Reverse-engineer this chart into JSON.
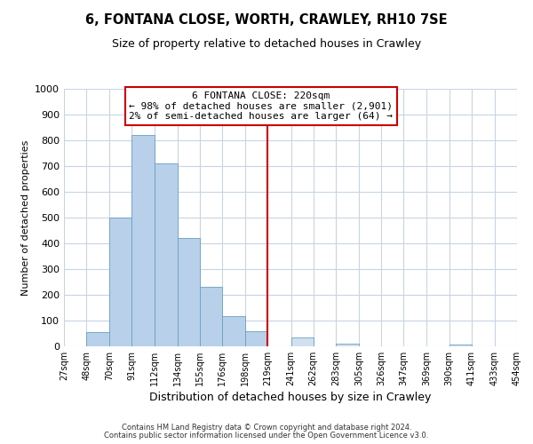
{
  "title": "6, FONTANA CLOSE, WORTH, CRAWLEY, RH10 7SE",
  "subtitle": "Size of property relative to detached houses in Crawley",
  "xlabel": "Distribution of detached houses by size in Crawley",
  "ylabel": "Number of detached properties",
  "bar_edges": [
    27,
    48,
    70,
    91,
    112,
    134,
    155,
    176,
    198,
    219,
    241,
    262,
    283,
    305,
    326,
    347,
    369,
    390,
    411,
    433,
    454
  ],
  "bar_heights": [
    0,
    55,
    500,
    820,
    710,
    420,
    230,
    118,
    57,
    0,
    35,
    0,
    10,
    0,
    0,
    0,
    0,
    6,
    0,
    0,
    0
  ],
  "bar_color_left": "#b8d0ea",
  "bar_color_right": "#cfe0f0",
  "bar_edge_color": "#6a9fc0",
  "vline_x": 219,
  "vline_color": "#cc0000",
  "annotation_title": "6 FONTANA CLOSE: 220sqm",
  "annotation_line1": "← 98% of detached houses are smaller (2,901)",
  "annotation_line2": "2% of semi-detached houses are larger (64) →",
  "annotation_box_color": "#ffffff",
  "annotation_box_edgecolor": "#cc0000",
  "ylim": [
    0,
    1000
  ],
  "tick_labels": [
    "27sqm",
    "48sqm",
    "70sqm",
    "91sqm",
    "112sqm",
    "134sqm",
    "155sqm",
    "176sqm",
    "198sqm",
    "219sqm",
    "241sqm",
    "262sqm",
    "283sqm",
    "305sqm",
    "326sqm",
    "347sqm",
    "369sqm",
    "390sqm",
    "411sqm",
    "433sqm",
    "454sqm"
  ],
  "footer1": "Contains HM Land Registry data © Crown copyright and database right 2024.",
  "footer2": "Contains public sector information licensed under the Open Government Licence v3.0.",
  "bg_color": "#ffffff",
  "grid_color": "#c8d4e4",
  "title_fontsize": 10.5,
  "subtitle_fontsize": 9,
  "ylabel_fontsize": 8,
  "xlabel_fontsize": 9,
  "ytick_fontsize": 8,
  "xtick_fontsize": 7
}
